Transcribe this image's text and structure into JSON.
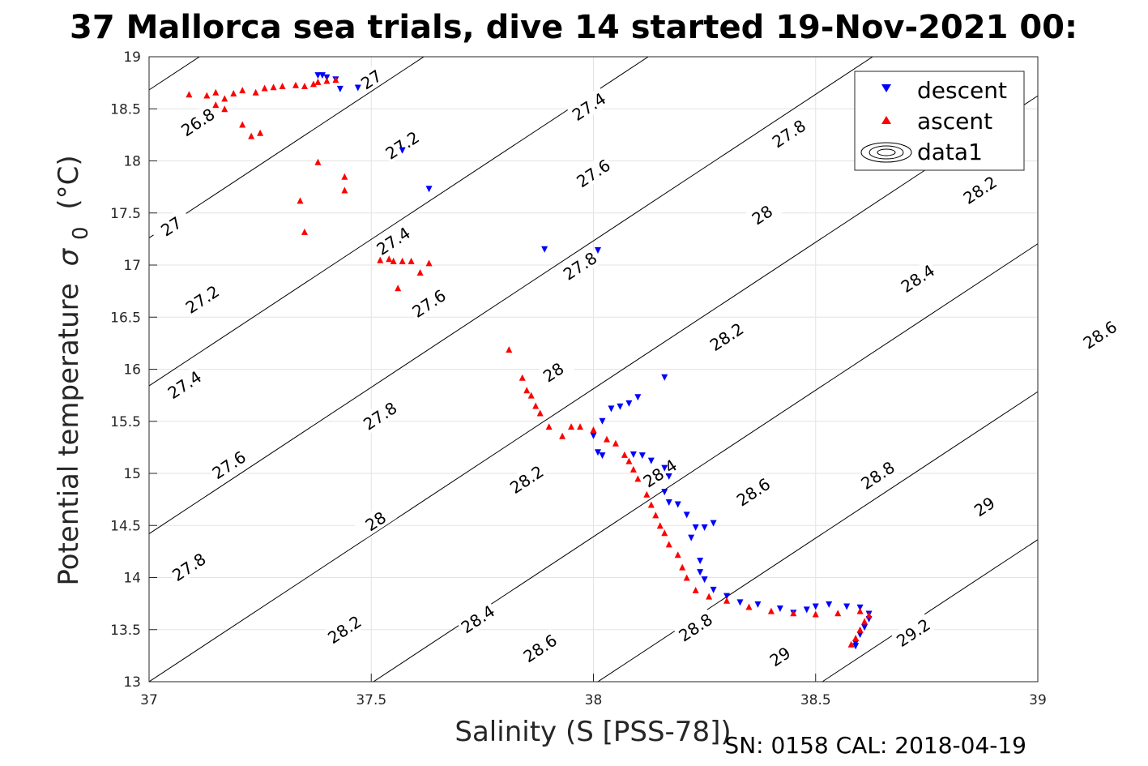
{
  "chart_data": {
    "type": "scatter",
    "title": "37 Mallorca sea trials, dive 14 started 19-Nov-2021 00:",
    "xlabel": "Salinity (S [PSS-78])",
    "ylabel_main": "Potential temperature",
    "ylabel_sigma": "σ",
    "ylabel_sub": "0",
    "ylabel_unit": "(°C)",
    "xlim": [
      37,
      39
    ],
    "ylim": [
      13,
      19
    ],
    "xticks": [
      "37",
      "37.5",
      "38",
      "38.5",
      "39"
    ],
    "yticks": [
      "13",
      "13.5",
      "14",
      "14.5",
      "15",
      "15.5",
      "16",
      "16.5",
      "17",
      "17.5",
      "18",
      "18.5",
      "19"
    ],
    "grid": true,
    "legend_position": "top-right",
    "legend": [
      {
        "label": "descent",
        "marker": "triangle-down",
        "color": "#0000ff"
      },
      {
        "label": "ascent",
        "marker": "triangle-up",
        "color": "#ff0000"
      },
      {
        "label": "data1",
        "marker": "contour",
        "color": "#000000"
      }
    ],
    "footer": "SN: 0158  CAL: 2018-04-19",
    "density_contours": {
      "levels": [
        "26.8",
        "27",
        "27.2",
        "27.4",
        "27.6",
        "27.8",
        "28",
        "28.2",
        "28.4",
        "28.6",
        "28.8",
        "29",
        "29.2"
      ],
      "labels": [
        {
          "text": "26.8",
          "s": 37.11,
          "t": 18.37
        },
        {
          "text": "27",
          "s": 37.5,
          "t": 18.78
        },
        {
          "text": "27",
          "s": 37.05,
          "t": 17.37
        },
        {
          "text": "27.2",
          "s": 37.57,
          "t": 18.15
        },
        {
          "text": "27.2",
          "s": 37.12,
          "t": 16.67
        },
        {
          "text": "27.4",
          "s": 37.99,
          "t": 18.52
        },
        {
          "text": "27.4",
          "s": 37.55,
          "t": 17.23
        },
        {
          "text": "27.4",
          "s": 37.08,
          "t": 15.85
        },
        {
          "text": "27.6",
          "s": 38.0,
          "t": 17.88
        },
        {
          "text": "27.6",
          "s": 37.63,
          "t": 16.63
        },
        {
          "text": "27.6",
          "s": 37.18,
          "t": 15.08
        },
        {
          "text": "27.8",
          "s": 38.44,
          "t": 18.26
        },
        {
          "text": "27.8",
          "s": 37.97,
          "t": 16.99
        },
        {
          "text": "27.8",
          "s": 37.52,
          "t": 15.55
        },
        {
          "text": "27.8",
          "s": 37.09,
          "t": 14.1
        },
        {
          "text": "28",
          "s": 38.38,
          "t": 17.48
        },
        {
          "text": "28",
          "s": 37.91,
          "t": 15.97
        },
        {
          "text": "28",
          "s": 37.51,
          "t": 14.54
        },
        {
          "text": "28.2",
          "s": 38.87,
          "t": 17.72
        },
        {
          "text": "28.2",
          "s": 38.3,
          "t": 16.31
        },
        {
          "text": "28.2",
          "s": 37.85,
          "t": 14.94
        },
        {
          "text": "28.2",
          "s": 37.44,
          "t": 13.5
        },
        {
          "text": "28.4",
          "s": 38.73,
          "t": 16.87
        },
        {
          "text": "28.4",
          "s": 38.15,
          "t": 15.0
        },
        {
          "text": "28.4",
          "s": 37.74,
          "t": 13.6
        },
        {
          "text": "28.6",
          "s": 39.14,
          "t": 16.33
        },
        {
          "text": "28.6",
          "s": 38.36,
          "t": 14.82
        },
        {
          "text": "28.6",
          "s": 37.88,
          "t": 13.32
        },
        {
          "text": "28.8",
          "s": 38.64,
          "t": 14.98
        },
        {
          "text": "28.8",
          "s": 38.23,
          "t": 13.52
        },
        {
          "text": "29",
          "s": 38.88,
          "t": 14.68
        },
        {
          "text": "29",
          "s": 38.42,
          "t": 13.24
        },
        {
          "text": "29.2",
          "s": 38.72,
          "t": 13.47
        }
      ]
    },
    "series": [
      {
        "name": "descent",
        "marker": "triangle-down",
        "color": "#0000ff",
        "points": [
          [
            37.38,
            18.82
          ],
          [
            37.39,
            18.82
          ],
          [
            37.4,
            18.8
          ],
          [
            37.42,
            18.78
          ],
          [
            37.43,
            18.69
          ],
          [
            37.47,
            18.7
          ],
          [
            37.57,
            18.1
          ],
          [
            37.63,
            17.73
          ],
          [
            37.89,
            17.15
          ],
          [
            38.01,
            17.14
          ],
          [
            38.16,
            15.92
          ],
          [
            38.1,
            15.73
          ],
          [
            38.08,
            15.67
          ],
          [
            38.06,
            15.64
          ],
          [
            38.04,
            15.62
          ],
          [
            38.02,
            15.5
          ],
          [
            38.0,
            15.36
          ],
          [
            38.01,
            15.2
          ],
          [
            38.02,
            15.17
          ],
          [
            38.09,
            15.18
          ],
          [
            38.11,
            15.17
          ],
          [
            38.13,
            15.12
          ],
          [
            38.16,
            15.05
          ],
          [
            38.17,
            14.97
          ],
          [
            38.16,
            14.82
          ],
          [
            38.17,
            14.72
          ],
          [
            38.19,
            14.7
          ],
          [
            38.21,
            14.6
          ],
          [
            38.22,
            14.38
          ],
          [
            38.23,
            14.48
          ],
          [
            38.25,
            14.48
          ],
          [
            38.27,
            14.52
          ],
          [
            38.24,
            14.16
          ],
          [
            38.24,
            14.05
          ],
          [
            38.25,
            13.98
          ],
          [
            38.27,
            13.88
          ],
          [
            38.3,
            13.82
          ],
          [
            38.33,
            13.76
          ],
          [
            38.37,
            13.74
          ],
          [
            38.42,
            13.7
          ],
          [
            38.45,
            13.66
          ],
          [
            38.48,
            13.69
          ],
          [
            38.5,
            13.72
          ],
          [
            38.53,
            13.74
          ],
          [
            38.57,
            13.72
          ],
          [
            38.6,
            13.71
          ],
          [
            38.62,
            13.65
          ],
          [
            38.62,
            13.6
          ],
          [
            38.61,
            13.52
          ],
          [
            38.6,
            13.45
          ],
          [
            38.59,
            13.37
          ],
          [
            38.59,
            13.34
          ]
        ]
      },
      {
        "name": "ascent",
        "marker": "triangle-up",
        "color": "#ff0000",
        "points": [
          [
            37.09,
            18.64
          ],
          [
            37.13,
            18.63
          ],
          [
            37.15,
            18.66
          ],
          [
            37.17,
            18.6
          ],
          [
            37.19,
            18.65
          ],
          [
            37.21,
            18.68
          ],
          [
            37.24,
            18.66
          ],
          [
            37.26,
            18.7
          ],
          [
            37.28,
            18.71
          ],
          [
            37.3,
            18.72
          ],
          [
            37.33,
            18.73
          ],
          [
            37.35,
            18.72
          ],
          [
            37.37,
            18.74
          ],
          [
            37.38,
            18.76
          ],
          [
            37.4,
            18.77
          ],
          [
            37.42,
            18.78
          ],
          [
            37.15,
            18.54
          ],
          [
            37.17,
            18.5
          ],
          [
            37.21,
            18.35
          ],
          [
            37.23,
            18.24
          ],
          [
            37.25,
            18.27
          ],
          [
            37.38,
            17.99
          ],
          [
            37.44,
            17.85
          ],
          [
            37.44,
            17.72
          ],
          [
            37.34,
            17.62
          ],
          [
            37.35,
            17.32
          ],
          [
            37.52,
            17.05
          ],
          [
            37.54,
            17.06
          ],
          [
            37.55,
            17.04
          ],
          [
            37.57,
            17.04
          ],
          [
            37.59,
            17.04
          ],
          [
            37.61,
            16.93
          ],
          [
            37.56,
            16.78
          ],
          [
            37.63,
            17.02
          ],
          [
            37.81,
            16.19
          ],
          [
            37.84,
            15.92
          ],
          [
            37.85,
            15.8
          ],
          [
            37.86,
            15.75
          ],
          [
            37.87,
            15.65
          ],
          [
            37.88,
            15.58
          ],
          [
            37.9,
            15.45
          ],
          [
            37.93,
            15.36
          ],
          [
            37.95,
            15.45
          ],
          [
            37.97,
            15.45
          ],
          [
            38.0,
            15.42
          ],
          [
            38.03,
            15.33
          ],
          [
            38.05,
            15.29
          ],
          [
            38.07,
            15.18
          ],
          [
            38.08,
            15.12
          ],
          [
            38.09,
            15.04
          ],
          [
            38.1,
            14.95
          ],
          [
            38.12,
            14.8
          ],
          [
            38.13,
            14.7
          ],
          [
            38.14,
            14.6
          ],
          [
            38.15,
            14.5
          ],
          [
            38.16,
            14.43
          ],
          [
            38.17,
            14.32
          ],
          [
            38.19,
            14.22
          ],
          [
            38.2,
            14.1
          ],
          [
            38.21,
            14.0
          ],
          [
            38.23,
            13.88
          ],
          [
            38.26,
            13.82
          ],
          [
            38.3,
            13.78
          ],
          [
            38.35,
            13.72
          ],
          [
            38.4,
            13.68
          ],
          [
            38.45,
            13.66
          ],
          [
            38.5,
            13.65
          ],
          [
            38.55,
            13.66
          ],
          [
            38.6,
            13.68
          ],
          [
            38.62,
            13.64
          ],
          [
            38.61,
            13.58
          ],
          [
            38.6,
            13.5
          ],
          [
            38.59,
            13.42
          ],
          [
            38.58,
            13.36
          ]
        ]
      }
    ]
  }
}
